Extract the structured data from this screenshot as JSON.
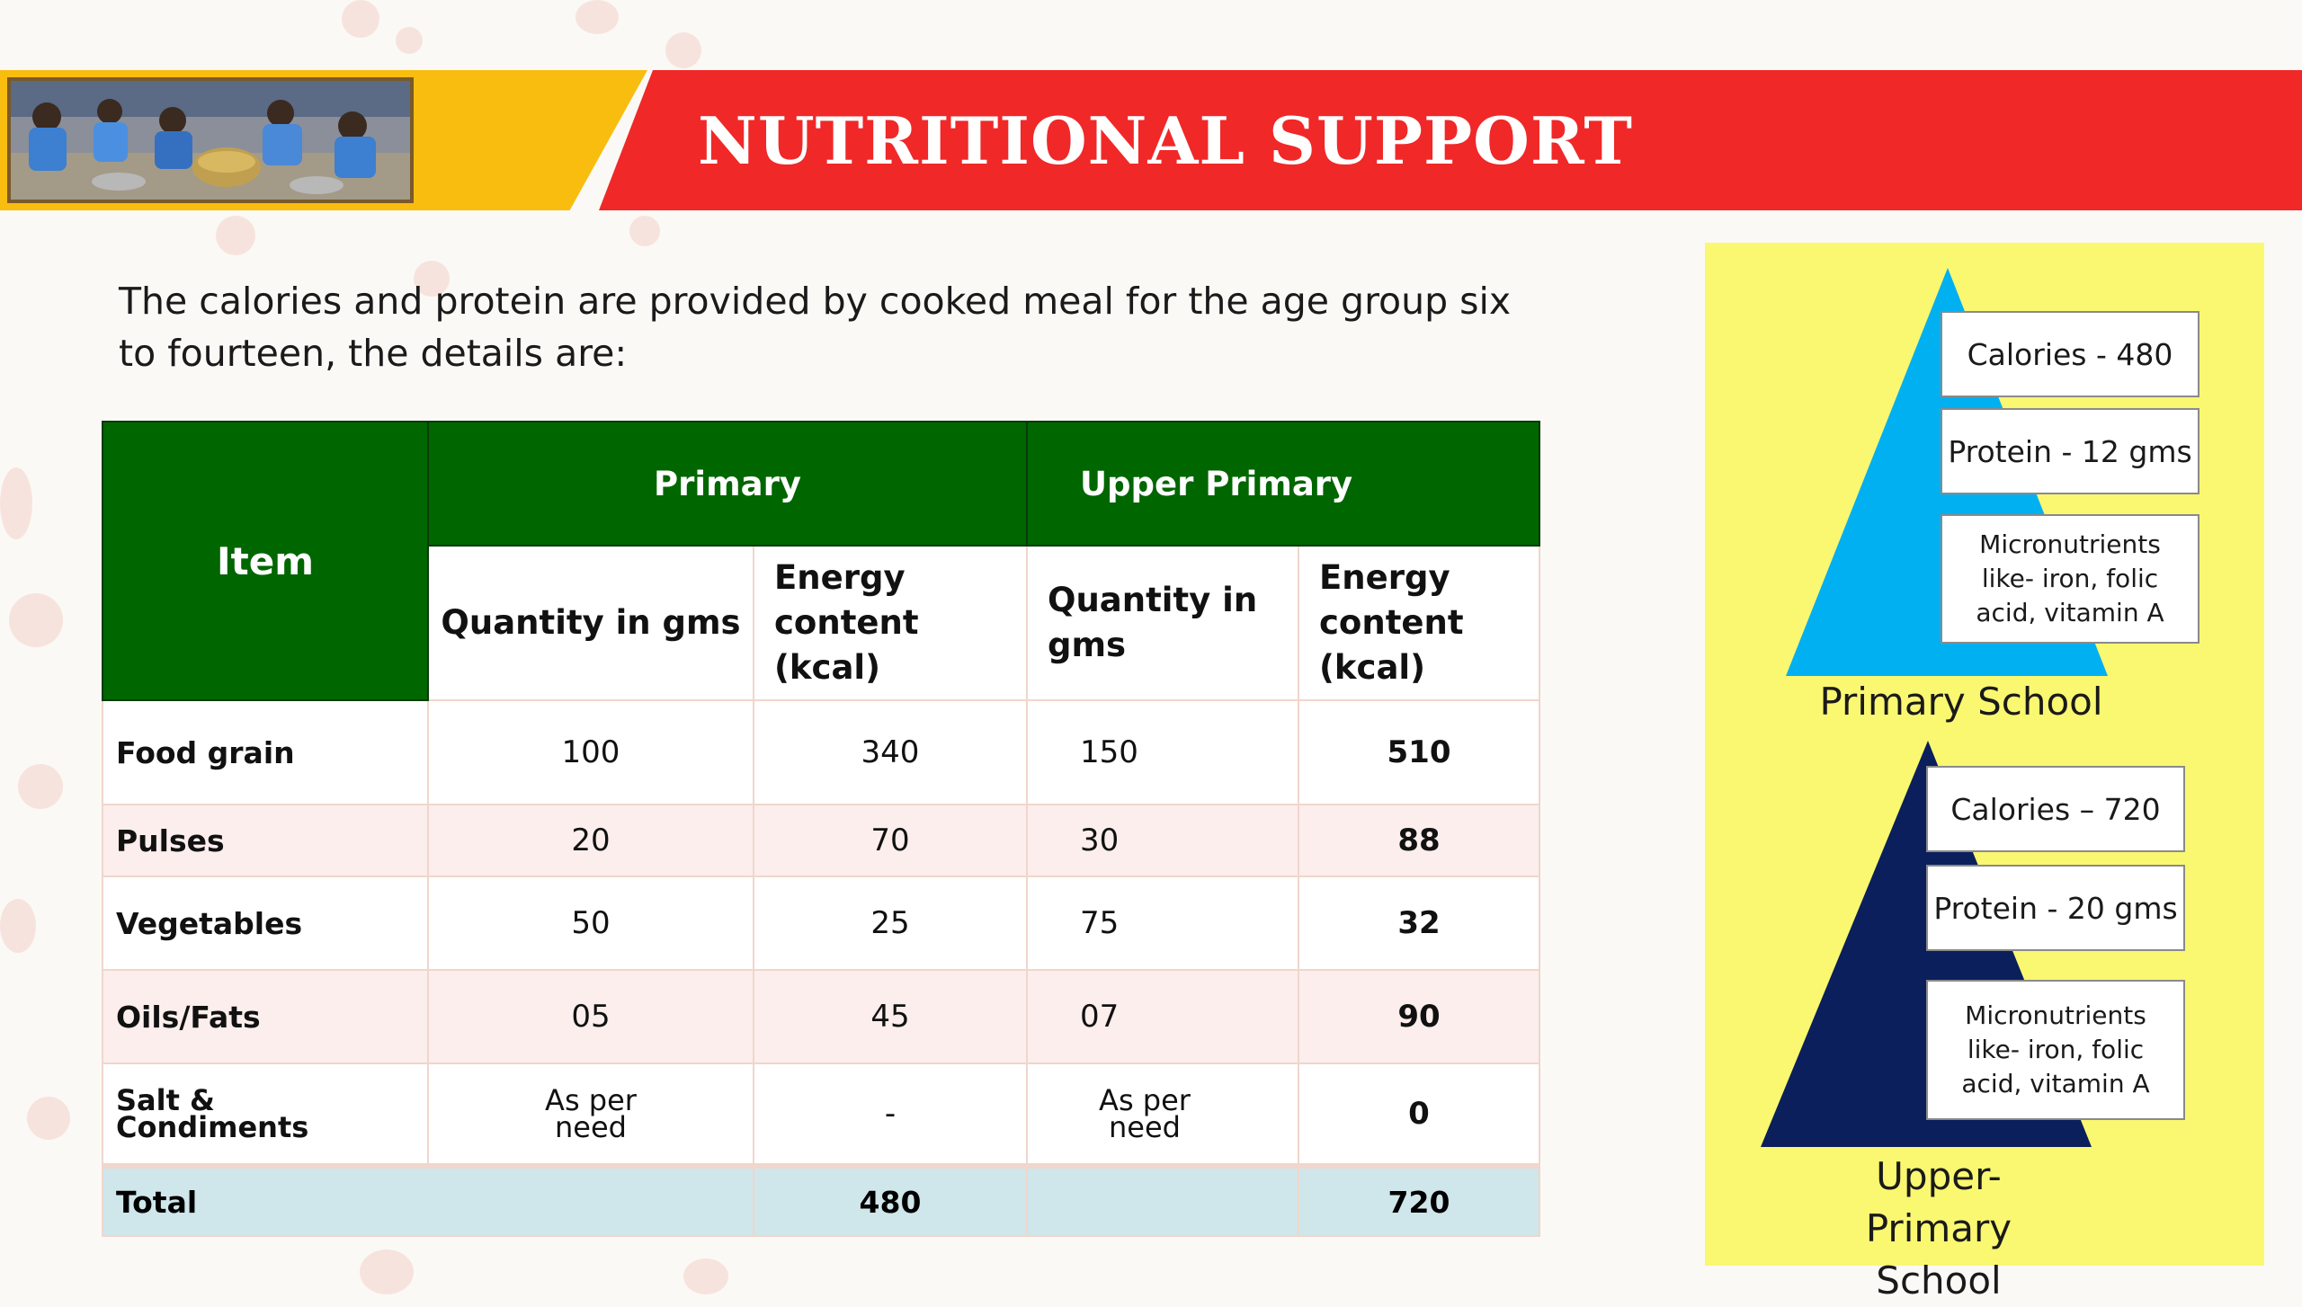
{
  "header": {
    "title": "NUTRITIONAL  SUPPORT",
    "colors": {
      "yellow_band": "#f9bd10",
      "red_band": "#f02828"
    }
  },
  "intro_text": "The calories and protein are provided by cooked meal for the age group six to fourteen, the details are:",
  "table": {
    "item_header": "Item",
    "groups": [
      "Primary",
      "Upper Primary"
    ],
    "subheaders": {
      "primary_qty": "Quantity in gms",
      "primary_energy": "Energy content (kcal)",
      "upper_qty": "Quantity in gms",
      "upper_energy": "Energy content (kcal)"
    },
    "rows": [
      {
        "item": "Food grain",
        "p_qty": "100",
        "p_energy": "340",
        "u_qty": "150",
        "u_energy": "510"
      },
      {
        "item": "Pulses",
        "p_qty": "20",
        "p_energy": "70",
        "u_qty": "30",
        "u_energy": "88"
      },
      {
        "item": "Vegetables",
        "p_qty": "50",
        "p_energy": "25",
        "u_qty": "75",
        "u_energy": "32"
      },
      {
        "item": "Oils/Fats",
        "p_qty": "05",
        "p_energy": "45",
        "u_qty": "07",
        "u_energy": "90"
      },
      {
        "item": "Salt & Condiments",
        "p_qty": "As per need",
        "p_energy": "-",
        "u_qty": "As per need",
        "u_energy": "0"
      }
    ],
    "total": {
      "label": "Total",
      "p_energy": "480",
      "u_energy": "720"
    },
    "colors": {
      "header_green": "#006600",
      "row_pink": "#fbeeec",
      "total_blue": "#cfe6ea"
    }
  },
  "pyramids": {
    "primary": {
      "calories": "Calories - 480",
      "protein": "Protein - 12 gms",
      "micronutrients": "Micronutrients like- iron, folic acid, vitamin A",
      "label": "Primary School",
      "color": "#00b0f0"
    },
    "upper": {
      "calories": "Calories – 720",
      "protein": "Protein - 20 gms",
      "micronutrients": "Micronutrients like- iron, folic acid, vitamin A",
      "label": "Upper-Primary School",
      "color": "#0a1f5c"
    },
    "panel_color": "#faf771"
  }
}
